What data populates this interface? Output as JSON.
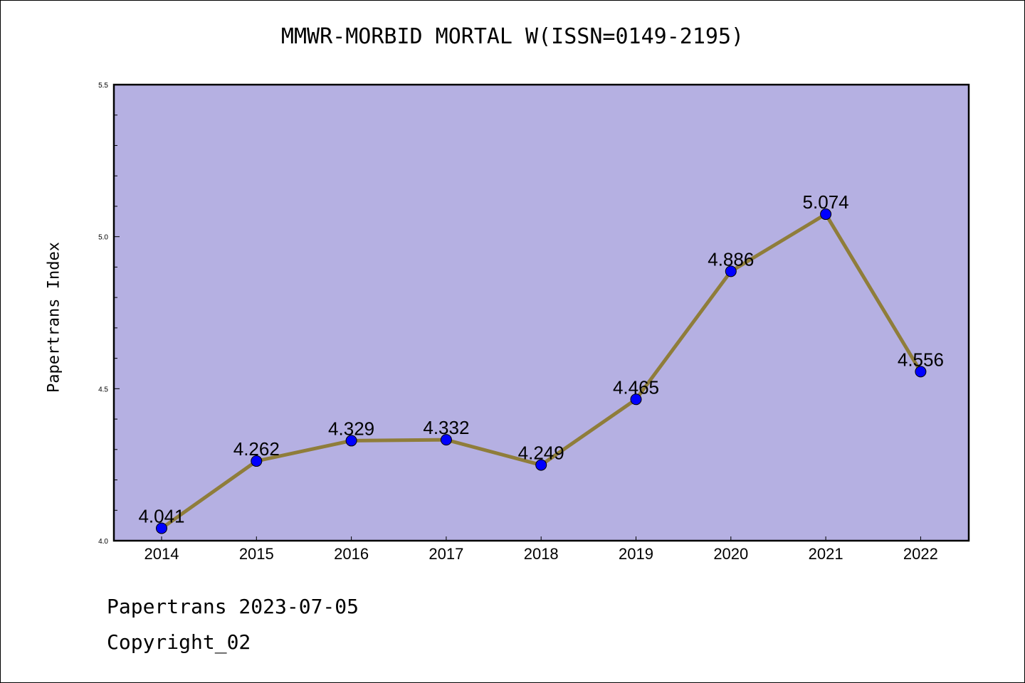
{
  "chart_data": {
    "type": "line",
    "title": "MMWR-MORBID MORTAL W(ISSN=0149-2195)",
    "xlabel": "",
    "ylabel": "Papertrans Index",
    "categories": [
      "2014",
      "2015",
      "2016",
      "2017",
      "2018",
      "2019",
      "2020",
      "2021",
      "2022"
    ],
    "series": [
      {
        "values": [
          4.041,
          4.262,
          4.329,
          4.332,
          4.249,
          4.465,
          4.886,
          5.074,
          4.556
        ],
        "labels": [
          "4.041",
          "4.262",
          "4.329",
          "4.332",
          "4.249",
          "4.465",
          "4.886",
          "5.074",
          "4.556"
        ]
      }
    ],
    "ylim": [
      4.0,
      5.5
    ],
    "yticks": [
      "4.0",
      "4.5",
      "5.0",
      "5.5"
    ],
    "grid": false,
    "colors": {
      "plot_background": "#b5b0e2",
      "line": "#8f7d3a",
      "marker": "#0000ff"
    }
  },
  "footer": {
    "line1": "Papertrans 2023-07-05",
    "line2": "Copyright_02"
  }
}
